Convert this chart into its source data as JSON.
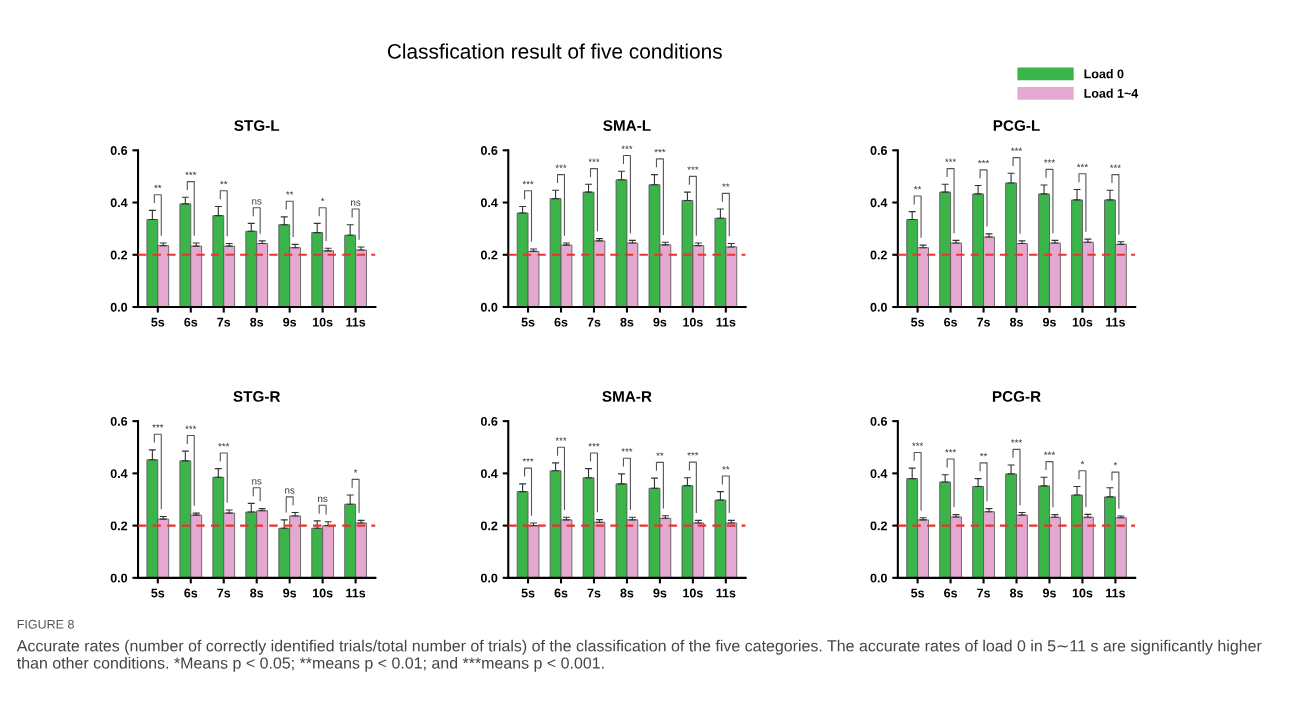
{
  "chart_data": [
    {
      "type": "bar",
      "title": "STG-L",
      "categories": [
        "5s",
        "6s",
        "7s",
        "8s",
        "9s",
        "10s",
        "11s"
      ],
      "ylim": [
        0,
        0.6
      ],
      "yticks": [
        {
          "value": 0,
          "label": "0.0"
        },
        {
          "value": 0.2,
          "label": "0.2"
        },
        {
          "value": 0.4,
          "label": "0.4"
        },
        {
          "value": 0.6,
          "label": "0.6"
        }
      ],
      "grid": false,
      "legend": false,
      "series": [
        {
          "color": "#3bb44a",
          "values": [
            0.335,
            0.395,
            0.35,
            0.29,
            0.315,
            0.285,
            0.275
          ],
          "errors": [
            [
              0.335,
              0.37
            ],
            [
              0.395,
              0.42
            ],
            [
              0.35,
              0.385
            ],
            [
              0.29,
              0.32
            ],
            [
              0.315,
              0.345
            ],
            [
              0.285,
              0.32
            ],
            [
              0.275,
              0.315
            ]
          ]
        },
        {
          "color": "#e5a9d1",
          "values": [
            0.235,
            0.233,
            0.233,
            0.243,
            0.227,
            0.215,
            0.218
          ],
          "errors": [
            [
              0.235,
              0.245
            ],
            [
              0.233,
              0.245
            ],
            [
              0.233,
              0.243
            ],
            [
              0.243,
              0.253
            ],
            [
              0.227,
              0.24
            ],
            [
              0.215,
              0.225
            ],
            [
              0.218,
              0.23
            ]
          ]
        }
      ],
      "ref_lines": [
        {
          "axis": "y",
          "value": 0.2,
          "color": "#e8342c",
          "line_style": "dashed"
        }
      ],
      "annotations": [
        "Classfication result of five conditions",
        "FIGURE 8",
        "Accurate rates (number of correctly identified trials/total number of trials) of the classification of the five categories. The accurate rates of load 0 in 5∼11 s are significantly higher than other conditions. *Means p < 0.05; **means p < 0.01; and ***means p < 0.001.",
        "**",
        "***",
        "**",
        "ns",
        "**",
        "*",
        "ns"
      ]
    },
    {
      "type": "bar",
      "title": "SMA-L",
      "categories": [
        "5s",
        "6s",
        "7s",
        "8s",
        "9s",
        "10s",
        "11s"
      ],
      "ylim": [
        0,
        0.6
      ],
      "yticks": [
        {
          "value": 0,
          "label": "0.0"
        },
        {
          "value": 0.2,
          "label": "0.2"
        },
        {
          "value": 0.4,
          "label": "0.4"
        },
        {
          "value": 0.6,
          "label": "0.6"
        }
      ],
      "grid": false,
      "legend": false,
      "series": [
        {
          "color": "#3bb44a",
          "values": [
            0.36,
            0.415,
            0.44,
            0.487,
            0.468,
            0.408,
            0.34
          ],
          "errors": [
            [
              0.36,
              0.385
            ],
            [
              0.415,
              0.447
            ],
            [
              0.44,
              0.47
            ],
            [
              0.487,
              0.52
            ],
            [
              0.468,
              0.507
            ],
            [
              0.408,
              0.44
            ],
            [
              0.34,
              0.375
            ]
          ]
        },
        {
          "color": "#e5a9d1",
          "values": [
            0.213,
            0.237,
            0.253,
            0.245,
            0.238,
            0.235,
            0.23
          ],
          "errors": [
            [
              0.213,
              0.222
            ],
            [
              0.237,
              0.245
            ],
            [
              0.253,
              0.262
            ],
            [
              0.245,
              0.255
            ],
            [
              0.238,
              0.248
            ],
            [
              0.235,
              0.245
            ],
            [
              0.23,
              0.243
            ]
          ]
        }
      ],
      "ref_lines": [
        {
          "axis": "y",
          "value": 0.2,
          "color": "#e8342c",
          "line_style": "dashed"
        }
      ],
      "annotations": [
        "***",
        "***",
        "***",
        "***",
        "***",
        "***",
        "**"
      ]
    },
    {
      "type": "bar",
      "title": "PCG-L",
      "categories": [
        "5s",
        "6s",
        "7s",
        "8s",
        "9s",
        "10s",
        "11s"
      ],
      "ylim": [
        0,
        0.6
      ],
      "yticks": [
        {
          "value": 0,
          "label": "0.0"
        },
        {
          "value": 0.2,
          "label": "0.2"
        },
        {
          "value": 0.4,
          "label": "0.4"
        },
        {
          "value": 0.6,
          "label": "0.6"
        }
      ],
      "grid": false,
      "legend": "top right",
      "series": [
        {
          "name": "Load 0",
          "color": "#3bb44a",
          "values": [
            0.335,
            0.44,
            0.433,
            0.475,
            0.433,
            0.41,
            0.41
          ],
          "errors": [
            [
              0.335,
              0.365
            ],
            [
              0.44,
              0.47
            ],
            [
              0.433,
              0.465
            ],
            [
              0.475,
              0.512
            ],
            [
              0.433,
              0.467
            ],
            [
              0.41,
              0.45
            ],
            [
              0.41,
              0.447
            ]
          ]
        },
        {
          "name": "Load 1~4",
          "color": "#e5a9d1",
          "values": [
            0.227,
            0.245,
            0.268,
            0.243,
            0.245,
            0.248,
            0.24
          ],
          "errors": [
            [
              0.227,
              0.237
            ],
            [
              0.245,
              0.255
            ],
            [
              0.268,
              0.28
            ],
            [
              0.243,
              0.253
            ],
            [
              0.245,
              0.255
            ],
            [
              0.248,
              0.26
            ],
            [
              0.24,
              0.25
            ]
          ]
        }
      ],
      "ref_lines": [
        {
          "axis": "y",
          "value": 0.2,
          "color": "#e8342c",
          "line_style": "dashed"
        }
      ],
      "annotations": [
        "**",
        "***",
        "***",
        "***",
        "***",
        "***",
        "***"
      ]
    },
    {
      "type": "bar",
      "title": "STG-R",
      "categories": [
        "5s",
        "6s",
        "7s",
        "8s",
        "9s",
        "10s",
        "11s"
      ],
      "ylim": [
        0,
        0.6
      ],
      "yticks": [
        {
          "value": 0,
          "label": "0.0"
        },
        {
          "value": 0.2,
          "label": "0.2"
        },
        {
          "value": 0.4,
          "label": "0.4"
        },
        {
          "value": 0.6,
          "label": "0.6"
        }
      ],
      "grid": false,
      "legend": false,
      "series": [
        {
          "color": "#3bb44a",
          "values": [
            0.452,
            0.448,
            0.385,
            0.252,
            0.19,
            0.19,
            0.282
          ],
          "errors": [
            [
              0.452,
              0.49
            ],
            [
              0.448,
              0.485
            ],
            [
              0.385,
              0.418
            ],
            [
              0.252,
              0.285
            ],
            [
              0.19,
              0.222
            ],
            [
              0.19,
              0.218
            ],
            [
              0.282,
              0.317
            ]
          ]
        },
        {
          "color": "#e5a9d1",
          "values": [
            0.225,
            0.24,
            0.248,
            0.257,
            0.237,
            0.2,
            0.21
          ],
          "errors": [
            [
              0.225,
              0.235
            ],
            [
              0.24,
              0.248
            ],
            [
              0.248,
              0.26
            ],
            [
              0.257,
              0.265
            ],
            [
              0.237,
              0.25
            ],
            [
              0.2,
              0.215
            ],
            [
              0.21,
              0.22
            ]
          ]
        }
      ],
      "ref_lines": [
        {
          "axis": "y",
          "value": 0.2,
          "color": "#e8342c",
          "line_style": "dashed"
        }
      ],
      "annotations": [
        "***",
        "***",
        "***",
        "ns",
        "ns",
        "ns",
        "*"
      ]
    },
    {
      "type": "bar",
      "title": "SMA-R",
      "categories": [
        "5s",
        "6s",
        "7s",
        "8s",
        "9s",
        "10s",
        "11s"
      ],
      "ylim": [
        0,
        0.6
      ],
      "yticks": [
        {
          "value": 0,
          "label": "0.0"
        },
        {
          "value": 0.2,
          "label": "0.2"
        },
        {
          "value": 0.4,
          "label": "0.4"
        },
        {
          "value": 0.6,
          "label": "0.6"
        }
      ],
      "grid": false,
      "legend": false,
      "series": [
        {
          "color": "#3bb44a",
          "values": [
            0.33,
            0.41,
            0.383,
            0.36,
            0.343,
            0.353,
            0.298
          ],
          "errors": [
            [
              0.33,
              0.36
            ],
            [
              0.41,
              0.44
            ],
            [
              0.383,
              0.418
            ],
            [
              0.36,
              0.398
            ],
            [
              0.343,
              0.382
            ],
            [
              0.353,
              0.383
            ],
            [
              0.298,
              0.33
            ]
          ]
        },
        {
          "color": "#e5a9d1",
          "values": [
            0.2,
            0.222,
            0.213,
            0.222,
            0.228,
            0.21,
            0.21
          ],
          "errors": [
            [
              0.2,
              0.21
            ],
            [
              0.222,
              0.232
            ],
            [
              0.213,
              0.223
            ],
            [
              0.222,
              0.232
            ],
            [
              0.228,
              0.238
            ],
            [
              0.21,
              0.22
            ],
            [
              0.21,
              0.22
            ]
          ]
        }
      ],
      "ref_lines": [
        {
          "axis": "y",
          "value": 0.2,
          "color": "#e8342c",
          "line_style": "dashed"
        }
      ],
      "annotations": [
        "***",
        "***",
        "***",
        "***",
        "**",
        "***",
        "**"
      ]
    },
    {
      "type": "bar",
      "title": "PCG-R",
      "categories": [
        "5s",
        "6s",
        "7s",
        "8s",
        "9s",
        "10s",
        "11s"
      ],
      "ylim": [
        0,
        0.6
      ],
      "yticks": [
        {
          "value": 0,
          "label": "0.0"
        },
        {
          "value": 0.2,
          "label": "0.2"
        },
        {
          "value": 0.4,
          "label": "0.4"
        },
        {
          "value": 0.6,
          "label": "0.6"
        }
      ],
      "grid": false,
      "legend": false,
      "series": [
        {
          "color": "#3bb44a",
          "values": [
            0.38,
            0.367,
            0.35,
            0.398,
            0.352,
            0.317,
            0.31
          ],
          "errors": [
            [
              0.38,
              0.42
            ],
            [
              0.367,
              0.395
            ],
            [
              0.35,
              0.38
            ],
            [
              0.398,
              0.432
            ],
            [
              0.352,
              0.385
            ],
            [
              0.317,
              0.35
            ],
            [
              0.31,
              0.345
            ]
          ]
        },
        {
          "color": "#e5a9d1",
          "values": [
            0.222,
            0.233,
            0.253,
            0.24,
            0.232,
            0.232,
            0.23
          ],
          "errors": [
            [
              0.222,
              0.23
            ],
            [
              0.233,
              0.242
            ],
            [
              0.253,
              0.265
            ],
            [
              0.24,
              0.25
            ],
            [
              0.232,
              0.242
            ],
            [
              0.232,
              0.243
            ],
            [
              0.23,
              0.237
            ]
          ]
        }
      ],
      "ref_lines": [
        {
          "axis": "y",
          "value": 0.2,
          "color": "#e8342c",
          "line_style": "dashed"
        }
      ],
      "annotations": [
        "***",
        "***",
        "**",
        "***",
        "***",
        "*",
        "*"
      ]
    }
  ]
}
